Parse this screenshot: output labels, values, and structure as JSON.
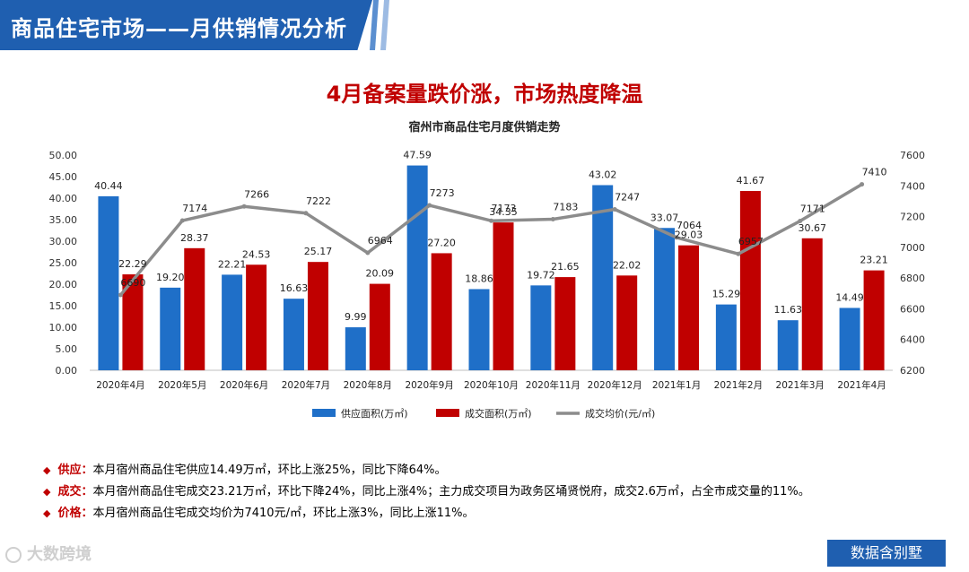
{
  "header": {
    "title": "商品住宅市场——月供销情况分析",
    "headline": "4月备案量跌价涨，市场热度降温"
  },
  "colors": {
    "supply": "#1f6fc8",
    "sales": "#c00000",
    "price": "#8c8c8c",
    "accent": "#1f5fb0"
  },
  "chart_data": {
    "type": "bar",
    "title": "宿州市商品住宅月度供销走势",
    "categories": [
      "2020年4月",
      "2020年5月",
      "2020年6月",
      "2020年7月",
      "2020年8月",
      "2020年9月",
      "2020年10月",
      "2020年11月",
      "2020年12月",
      "2021年1月",
      "2021年2月",
      "2021年3月",
      "2021年4月"
    ],
    "series": [
      {
        "name": "供应面积(万㎡)",
        "values": [
          40.44,
          19.2,
          22.21,
          16.63,
          9.99,
          47.59,
          18.86,
          19.72,
          43.02,
          33.07,
          15.29,
          11.63,
          14.49
        ]
      },
      {
        "name": "成交面积(万㎡)",
        "values": [
          22.29,
          28.37,
          24.53,
          25.17,
          20.09,
          27.2,
          34.35,
          21.65,
          22.02,
          29.03,
          41.67,
          30.67,
          23.21
        ]
      },
      {
        "name": "成交均价(元/㎡)",
        "type": "line",
        "values": [
          6690,
          7174,
          7266,
          7222,
          6964,
          7273,
          7173,
          7183,
          7247,
          7064,
          6957,
          7171,
          7410
        ]
      }
    ],
    "value_labels": {
      "supply": [
        "40.44",
        "19.20",
        "22.21",
        "16.63",
        "9.99",
        "47.59",
        "18.86",
        "19.72",
        "43.02",
        "33.07",
        "15.29",
        "11.63",
        "14.49"
      ],
      "sales": [
        "22.29",
        "28.37",
        "24.53",
        "25.17",
        "20.09",
        "27.20",
        "34.35",
        "21.65",
        "22.02",
        "29.03",
        "41.67",
        "30.67",
        "23.21"
      ],
      "price": [
        "6690",
        "7174",
        "7266",
        "7222",
        "6964",
        "7273",
        "7173",
        "7183",
        "7247",
        "7064",
        "6957",
        "7171",
        "7410"
      ]
    },
    "y_left": {
      "range": [
        0,
        50
      ],
      "ticks": [
        "0.00",
        "5.00",
        "10.00",
        "15.00",
        "20.00",
        "25.00",
        "30.00",
        "35.00",
        "40.00",
        "45.00",
        "50.00"
      ]
    },
    "y_right": {
      "range": [
        6200,
        7600
      ],
      "ticks": [
        "6200",
        "6400",
        "6600",
        "6800",
        "7000",
        "7200",
        "7400",
        "7600"
      ]
    },
    "grid": false,
    "legend": "bottom"
  },
  "bullets": [
    {
      "key": "供应：",
      "text": "本月宿州商品住宅供应14.49万㎡，环比上涨25%，同比下降64%。"
    },
    {
      "key": "成交：",
      "text": "本月宿州商品住宅成交23.21万㎡，环比下降24%，同比上涨4%；主力成交项目为政务区埇贤悦府，成交2.6万㎡，占全市成交量的11%。"
    },
    {
      "key": "价格：",
      "text": "本月宿州商品住宅成交均价为7410元/㎡，环比上涨3%，同比上涨11%。"
    }
  ],
  "footer": {
    "badge": "数据含别墅",
    "logo": "大数跨境"
  }
}
